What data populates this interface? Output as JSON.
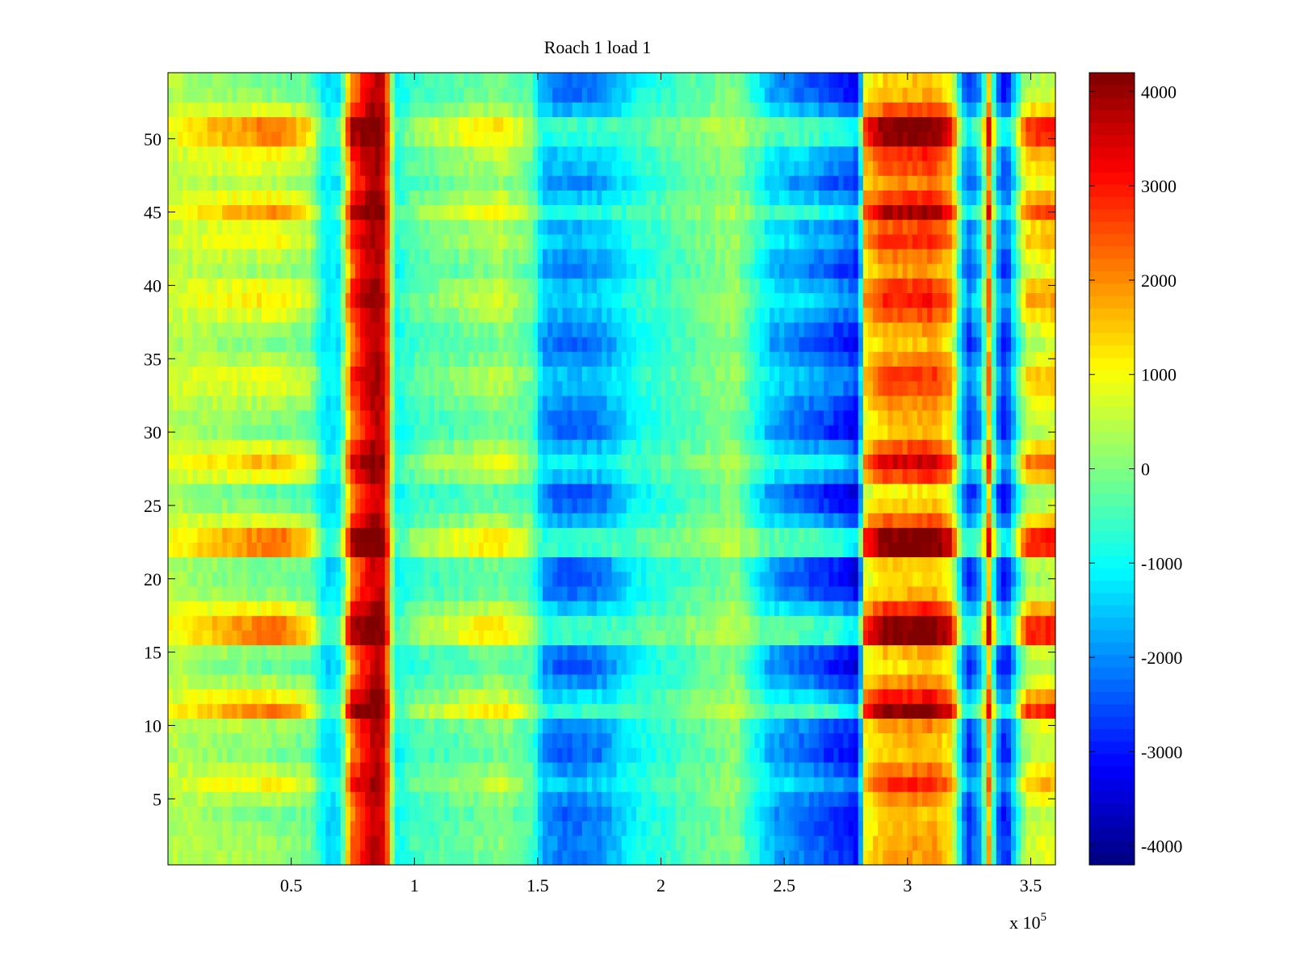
{
  "chart_data": {
    "type": "heatmap",
    "title": "Roach 1 load 1",
    "xlabel": "",
    "ylabel": "",
    "x_exponent_label": "x 10",
    "x_exponent": "5",
    "xlim": [
      0,
      3.6
    ],
    "ylim": [
      0.5,
      54.5
    ],
    "x_ticks": [
      0.5,
      1,
      1.5,
      2,
      2.5,
      3,
      3.5
    ],
    "x_tick_labels": [
      "0.5",
      "1",
      "1.5",
      "2",
      "2.5",
      "3",
      "3.5"
    ],
    "y_ticks": [
      5,
      10,
      15,
      20,
      25,
      30,
      35,
      40,
      45,
      50
    ],
    "y_tick_labels": [
      "5",
      "10",
      "15",
      "20",
      "25",
      "30",
      "35",
      "40",
      "45",
      "50"
    ],
    "colorbar": {
      "colormap": "jet",
      "range": [
        -4200,
        4200
      ],
      "ticks": [
        4000,
        3000,
        2000,
        1000,
        0,
        -1000,
        -2000,
        -3000,
        -4000
      ],
      "tick_labels": [
        "4000",
        "3000",
        "2000",
        "1000",
        "0",
        "-1000",
        "-2000",
        "-3000",
        "-4000"
      ]
    },
    "rows": 54,
    "column_profile": {
      "x": [
        0.0,
        0.2,
        0.45,
        0.58,
        0.64,
        0.7,
        0.74,
        0.8,
        0.84,
        0.88,
        0.92,
        1.0,
        1.2,
        1.35,
        1.48,
        1.52,
        1.6,
        1.75,
        1.9,
        2.1,
        2.3,
        2.45,
        2.6,
        2.75,
        2.8,
        2.83,
        2.9,
        3.1,
        3.18,
        3.22,
        3.25,
        3.3,
        3.33,
        3.36,
        3.4,
        3.43,
        3.48,
        3.6
      ],
      "base": [
        600,
        700,
        800,
        300,
        -1200,
        -900,
        2600,
        3500,
        3900,
        3700,
        -900,
        -300,
        100,
        400,
        -200,
        -1500,
        -1700,
        -1600,
        -800,
        -300,
        200,
        -1300,
        -1700,
        -2200,
        -2600,
        1600,
        2400,
        2600,
        1900,
        -1300,
        -2100,
        -1200,
        2200,
        -1400,
        -2600,
        -1200,
        1200,
        1500
      ],
      "amplitude": [
        300,
        900,
        1500,
        900,
        300,
        600,
        1200,
        700,
        400,
        300,
        300,
        500,
        800,
        900,
        500,
        700,
        1100,
        1000,
        400,
        300,
        300,
        900,
        1300,
        1400,
        1300,
        1300,
        1700,
        1700,
        1500,
        1000,
        1200,
        1100,
        1300,
        1200,
        1200,
        1000,
        1500,
        1500
      ]
    },
    "row_profile": [
      -0.4,
      -0.4,
      -0.5,
      -0.6,
      -0.3,
      0.2,
      -0.2,
      -0.6,
      -0.5,
      -0.3,
      1.0,
      0.3,
      -0.3,
      -0.7,
      -0.5,
      1.0,
      1.0,
      0.2,
      -0.5,
      -0.7,
      -0.6,
      1.0,
      1.0,
      0.0,
      -0.6,
      -0.8,
      0.1,
      0.6,
      0.0,
      -0.6,
      -0.5,
      -0.3,
      0.0,
      0.1,
      -0.3,
      -0.6,
      -0.4,
      0.0,
      0.3,
      0.1,
      -0.4,
      -0.2,
      0.2,
      0.0,
      0.8,
      0.2,
      -0.3,
      0.0,
      0.2,
      0.9,
      1.0,
      0.0,
      -0.5,
      -0.6
    ]
  }
}
